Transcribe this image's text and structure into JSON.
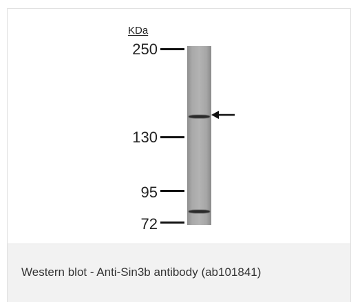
{
  "figure": {
    "unit_label": "KDa",
    "markers": [
      {
        "label": "250"
      },
      {
        "label": "130"
      },
      {
        "label": "95"
      },
      {
        "label": "72"
      }
    ]
  },
  "caption": "Western blot - Anti-Sin3b antibody (ab101841)"
}
